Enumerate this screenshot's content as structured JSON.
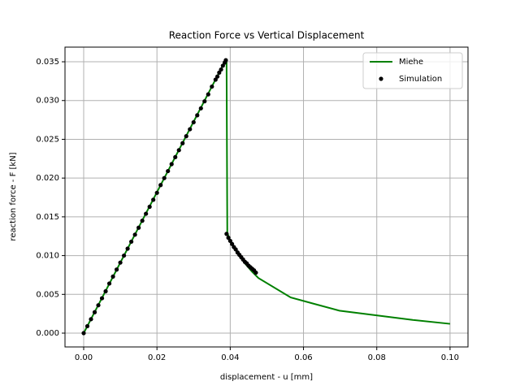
{
  "chart_data": {
    "type": "line",
    "title": "Reaction Force vs Vertical Displacement",
    "x_label": "displacement - u [mm]",
    "y_label": "reaction force - F [kN]",
    "xlim": [
      -0.0051,
      0.1049
    ],
    "ylim": [
      -0.00178,
      0.03689
    ],
    "xticks": [
      {
        "value": 0,
        "label": "0.00"
      },
      {
        "value": 0.02,
        "label": "0.02"
      },
      {
        "value": 0.04,
        "label": "0.04"
      },
      {
        "value": 0.06,
        "label": "0.06"
      },
      {
        "value": 0.08,
        "label": "0.08"
      },
      {
        "value": 0.1,
        "label": "0.10"
      }
    ],
    "yticks": [
      {
        "value": 0,
        "label": "0.000"
      },
      {
        "value": 0.005,
        "label": "0.005"
      },
      {
        "value": 0.01,
        "label": "0.010"
      },
      {
        "value": 0.015,
        "label": "0.015"
      },
      {
        "value": 0.02,
        "label": "0.020"
      },
      {
        "value": 0.025,
        "label": "0.025"
      },
      {
        "value": 0.03,
        "label": "0.030"
      },
      {
        "value": 0.035,
        "label": "0.035"
      }
    ],
    "grid": true,
    "legend": "upper right",
    "series": [
      {
        "name": "Miehe",
        "color": "#008000",
        "style": "line",
        "x": [
          0,
          0.0385,
          0.039,
          0.0392,
          0.04,
          0.042,
          0.044,
          0.046,
          0.0477,
          0.0565,
          0.0698,
          0.0898,
          0.1
        ],
        "values": [
          0,
          0.035,
          0.0352,
          0.013,
          0.0118,
          0.0103,
          0.009,
          0.0079,
          0.0071,
          0.0046,
          0.0029,
          0.0017,
          0.0012
        ]
      },
      {
        "name": "Simulation",
        "color": "#000000",
        "style": "marker",
        "x": [
          0,
          0.001,
          0.002,
          0.003,
          0.004,
          0.005,
          0.006,
          0.007,
          0.008,
          0.009,
          0.01,
          0.011,
          0.012,
          0.013,
          0.014,
          0.015,
          0.016,
          0.017,
          0.018,
          0.019,
          0.02,
          0.021,
          0.022,
          0.023,
          0.024,
          0.025,
          0.026,
          0.027,
          0.028,
          0.029,
          0.03,
          0.031,
          0.032,
          0.033,
          0.034,
          0.035,
          0.036,
          0.0365,
          0.037,
          0.0375,
          0.038,
          0.0385,
          0.0388,
          0.039,
          0.0395,
          0.04,
          0.0405,
          0.041,
          0.0415,
          0.042,
          0.0425,
          0.043,
          0.0435,
          0.044,
          0.0445,
          0.045,
          0.0455,
          0.046,
          0.0465,
          0.047
        ],
        "values": [
          0,
          0.0009,
          0.0018,
          0.0027,
          0.0036,
          0.0045,
          0.0054,
          0.0064,
          0.0073,
          0.0082,
          0.0091,
          0.01,
          0.0109,
          0.0118,
          0.0127,
          0.0136,
          0.0145,
          0.0154,
          0.0163,
          0.0172,
          0.0181,
          0.0191,
          0.02,
          0.0209,
          0.0218,
          0.0227,
          0.0236,
          0.0245,
          0.0254,
          0.0263,
          0.0272,
          0.0281,
          0.029,
          0.0299,
          0.0308,
          0.0318,
          0.0327,
          0.0331,
          0.0336,
          0.034,
          0.0345,
          0.0349,
          0.0352,
          0.0128,
          0.0123,
          0.0119,
          0.0115,
          0.0111,
          0.0108,
          0.0104,
          0.0101,
          0.0098,
          0.0095,
          0.0092,
          0.009,
          0.0087,
          0.0085,
          0.0083,
          0.0081,
          0.0078
        ]
      }
    ]
  }
}
